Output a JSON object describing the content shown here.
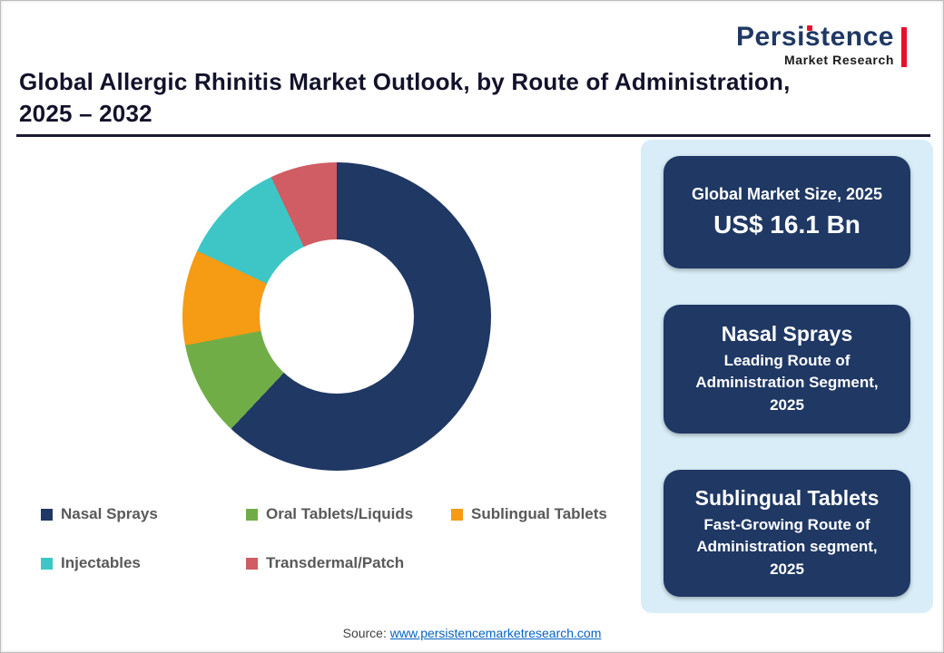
{
  "title": {
    "line1": "Global Allergic Rhinitis Market Outlook, by Route of Administration,",
    "line2": "2025 – 2032"
  },
  "logo": {
    "primary": "Persistence",
    "secondary": "Market Research"
  },
  "chart_data": {
    "type": "pie",
    "subtype": "donut",
    "title": "Global Allergic Rhinitis Market Outlook, by Route of Administration, 2025 – 2032",
    "categories": [
      "Nasal Sprays",
      "Oral Tablets/Liquids",
      "Sublingual Tablets",
      "Injectables",
      "Transdermal/Patch"
    ],
    "values": [
      62,
      10,
      10,
      11,
      7
    ],
    "values_note": "approximate % shares estimated from arc angles; no data labels shown in figure",
    "colors": [
      "#1F3864",
      "#70AD47",
      "#F59B14",
      "#3EC6C6",
      "#D05C64"
    ],
    "start_angle_deg": 0,
    "direction": "clockwise",
    "legend_position": "bottom",
    "hole_ratio": 0.5
  },
  "sidebar": {
    "cards": [
      {
        "title": "Global Market Size, 2025",
        "value": "US$ 16.1 Bn"
      },
      {
        "title": "Nasal Sprays",
        "subtitle": "Leading Route of Administration Segment, 2025"
      },
      {
        "title": "Sublingual Tablets",
        "subtitle": "Fast-Growing Route of Administration segment, 2025"
      }
    ]
  },
  "footer": {
    "source_label": "Source:",
    "source_link": "www.persistencemarketresearch.com"
  },
  "colors": {
    "accent_navy": "#1F3864",
    "sidebar_bg": "#D8EDF7",
    "legend_text": "#595959",
    "link_blue": "#0563C1",
    "logo_red": "#E8112D"
  }
}
